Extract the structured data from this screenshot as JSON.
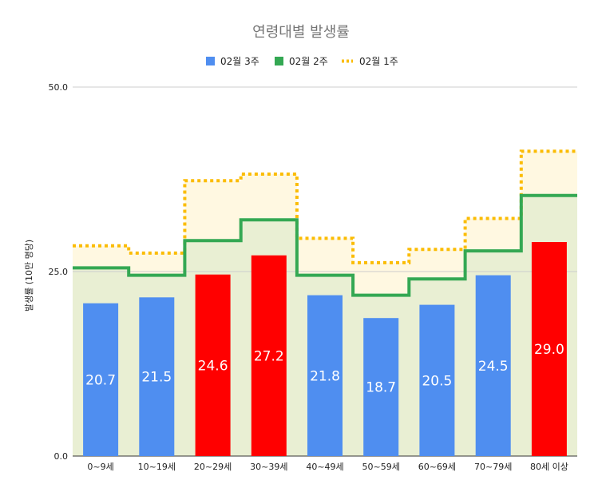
{
  "chart_data": {
    "type": "bar",
    "title": "연령대별 발생률",
    "ylabel": "발생률 (10만 명당)",
    "xlabel": "",
    "ylim": [
      0,
      50
    ],
    "yticks": [
      "0.0",
      "25.0",
      "50.0"
    ],
    "grid": true,
    "legend_position": "top",
    "categories": [
      "0~9세",
      "10~19세",
      "20~29세",
      "30~39세",
      "40~49세",
      "50~59세",
      "60~69세",
      "70~79세",
      "80세 이상"
    ],
    "series": [
      {
        "name": "02월 3주",
        "style": "bar",
        "values": [
          20.7,
          21.5,
          24.6,
          27.2,
          21.8,
          18.7,
          20.5,
          24.5,
          29.0
        ],
        "value_labels": [
          "20.7",
          "21.5",
          "24.6",
          "27.2",
          "21.8",
          "18.7",
          "20.5",
          "24.5",
          "29.0"
        ],
        "color": "#4f8ef0",
        "highlight_color": "#ff0000",
        "highlight_indices": [
          2,
          3,
          8
        ]
      },
      {
        "name": "02월 2주",
        "style": "step-area",
        "values": [
          25.5,
          24.5,
          29.2,
          32.0,
          24.5,
          21.8,
          24.0,
          27.8,
          35.3
        ],
        "color": "#34a853",
        "fill": "#e9efd3"
      },
      {
        "name": "02월 1주",
        "style": "step-area-dotted",
        "values": [
          28.5,
          27.5,
          37.3,
          38.2,
          29.5,
          26.2,
          28.0,
          32.2,
          41.3
        ],
        "color": "#fbbc04",
        "fill": "#fff8e1"
      }
    ]
  }
}
